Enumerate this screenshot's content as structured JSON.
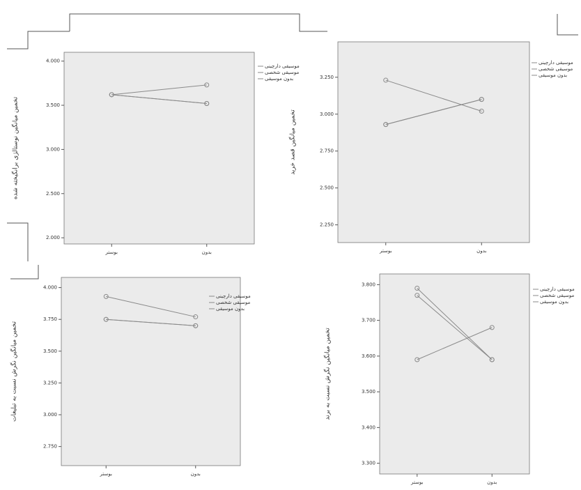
{
  "chart_data": [
    {
      "type": "line",
      "y_label": "تخمین میانگین نوستالژی برانگیخته شده",
      "categories": [
        "بوستر",
        "بدون"
      ],
      "series": [
        {
          "name": "موسیقی دارچینی",
          "color": "#8a8a8a",
          "values": [
            3.62,
            3.73
          ]
        },
        {
          "name": "موسیقی شخصی",
          "color": "#8a8a8a",
          "values": [
            3.62,
            3.52
          ]
        },
        {
          "name": "بدون موسیقی",
          "color": "#8a8a8a",
          "values": [
            3.62,
            3.52
          ]
        }
      ],
      "ylim": [
        1.93,
        4.1
      ],
      "yticks": [
        {
          "value": 2,
          "label": "2.000"
        },
        {
          "value": 2.5,
          "label": "2.500"
        },
        {
          "value": 3,
          "label": "3.000"
        },
        {
          "value": 3.5,
          "label": "3.500"
        },
        {
          "value": 4,
          "label": "4.000"
        }
      ]
    },
    {
      "type": "line",
      "y_label": "تخمین میانگین قصد خرید",
      "categories": [
        "بوستر",
        "بدون"
      ],
      "series": [
        {
          "name": "موسیقی دارچینی",
          "color": "#8a8a8a",
          "values": [
            3.23,
            3.02
          ]
        },
        {
          "name": "موسیقی شخصی",
          "color": "#8a8a8a",
          "values": [
            2.93,
            3.1
          ]
        },
        {
          "name": "بدون موسیقی",
          "color": "#8a8a8a",
          "values": [
            2.93,
            3.1
          ]
        }
      ],
      "ylim": [
        2.13,
        3.49
      ],
      "yticks": [
        {
          "value": 2.25,
          "label": "2.250"
        },
        {
          "value": 2.5,
          "label": "2.500"
        },
        {
          "value": 2.75,
          "label": "2.750"
        },
        {
          "value": 3,
          "label": "3.000"
        },
        {
          "value": 3.25,
          "label": "3.250"
        }
      ]
    },
    {
      "type": "line",
      "y_label": "تخمین میانگین نگرش نسبت به تبلیغات",
      "categories": [
        "بوستر",
        "بدون"
      ],
      "series": [
        {
          "name": "موسیقی دارچینی",
          "color": "#8a8a8a",
          "values": [
            3.93,
            3.77
          ]
        },
        {
          "name": "موسیقی شخصی",
          "color": "#8a8a8a",
          "values": [
            3.75,
            3.7
          ]
        },
        {
          "name": "بدون موسیقی",
          "color": "#8a8a8a",
          "values": [
            3.75,
            3.7
          ]
        }
      ],
      "ylim": [
        2.6,
        4.08
      ],
      "yticks": [
        {
          "value": 2.75,
          "label": "2.750"
        },
        {
          "value": 3,
          "label": "3.000"
        },
        {
          "value": 3.25,
          "label": "3.250"
        },
        {
          "value": 3.5,
          "label": "3.500"
        },
        {
          "value": 3.75,
          "label": "3.750"
        },
        {
          "value": 4,
          "label": "4.000"
        }
      ]
    },
    {
      "type": "line",
      "y_label": "تخمین میانگین نگرش نسبت به برند",
      "categories": [
        "بوستر",
        "بدون"
      ],
      "series": [
        {
          "name": "موسیقی دارچینی",
          "color": "#8a8a8a",
          "values": [
            3.79,
            3.59
          ]
        },
        {
          "name": "موسیقی شخصی",
          "color": "#8a8a8a",
          "values": [
            3.59,
            3.68
          ]
        },
        {
          "name": "بدون موسیقی",
          "color": "#8a8a8a",
          "values": [
            3.77,
            3.59
          ]
        }
      ],
      "ylim": [
        3.27,
        3.83
      ],
      "yticks": [
        {
          "value": 3.3,
          "label": "3.300"
        },
        {
          "value": 3.4,
          "label": "3.400"
        },
        {
          "value": 3.5,
          "label": "3.500"
        },
        {
          "value": 3.6,
          "label": "3.600"
        },
        {
          "value": 3.7,
          "label": "3.700"
        },
        {
          "value": 3.8,
          "label": "3.800"
        }
      ]
    }
  ]
}
